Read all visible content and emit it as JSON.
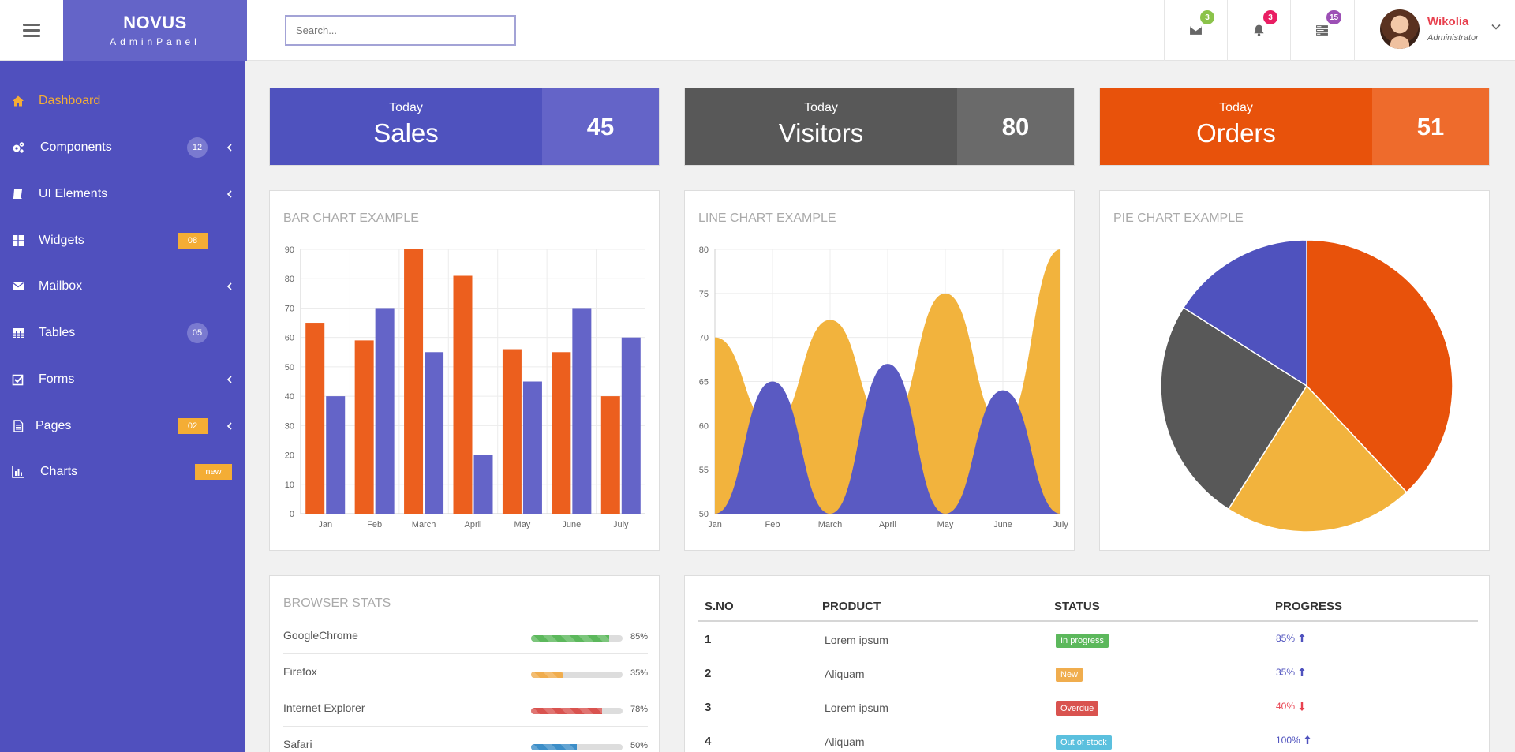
{
  "brand": {
    "name": "NOVUS",
    "subtitle": "AdminPanel"
  },
  "search": {
    "placeholder": "Search..."
  },
  "topbar": {
    "icons": [
      {
        "name": "mail-icon",
        "badge": "3",
        "color": "#8bc34a"
      },
      {
        "name": "bell-icon",
        "badge": "3",
        "color": "#e91e63"
      },
      {
        "name": "tasks-icon",
        "badge": "15",
        "color": "#9c4fb5"
      }
    ],
    "user": {
      "name": "Wikolia",
      "role": "Administrator"
    }
  },
  "sidebar": {
    "items": [
      {
        "label": "Dashboard",
        "icon": "home-icon",
        "active": true
      },
      {
        "label": "Components",
        "icon": "cogs-icon",
        "count": "12",
        "arrow": true
      },
      {
        "label": "UI Elements",
        "icon": "book-icon",
        "arrow": true
      },
      {
        "label": "Widgets",
        "icon": "th-large-icon",
        "tag": "08"
      },
      {
        "label": "Mailbox",
        "icon": "envelope-icon",
        "arrow": true
      },
      {
        "label": "Tables",
        "icon": "table-icon",
        "count": "05"
      },
      {
        "label": "Forms",
        "icon": "check-square-icon",
        "arrow": true
      },
      {
        "label": "Pages",
        "icon": "file-icon",
        "tag": "02",
        "arrow": true
      },
      {
        "label": "Charts",
        "icon": "bar-chart-icon",
        "tag": "new"
      }
    ]
  },
  "stats": [
    {
      "label": "Today",
      "title": "Sales",
      "value": "45",
      "color_left": "#4f52be",
      "color_right": "#6464c8"
    },
    {
      "label": "Today",
      "title": "Visitors",
      "value": "80",
      "color_left": "#585858",
      "color_right": "#6a6a6a"
    },
    {
      "label": "Today",
      "title": "Orders",
      "value": "51",
      "color_left": "#e8520b",
      "color_right": "#ee6b2c"
    }
  ],
  "panels": {
    "bar_title": "Bar Chart Example",
    "line_title": "Line Chart Example",
    "pie_title": "Pie Chart Example",
    "browser_title": "Browser Stats"
  },
  "chart_data": [
    {
      "type": "bar",
      "title": "BAR CHART EXAMPLE",
      "categories": [
        "Jan",
        "Feb",
        "March",
        "April",
        "May",
        "June",
        "July"
      ],
      "series": [
        {
          "values": [
            65,
            59,
            90,
            81,
            56,
            55,
            40
          ],
          "color": "#ec5f1e"
        },
        {
          "values": [
            40,
            70,
            55,
            20,
            45,
            70,
            60
          ],
          "color": "#6464c8"
        }
      ],
      "ylim": [
        0,
        90
      ],
      "yticks": [
        0,
        10,
        20,
        30,
        40,
        50,
        60,
        70,
        80,
        90
      ],
      "grid": true
    },
    {
      "type": "area",
      "title": "LINE CHART EXAMPLE",
      "categories": [
        "Jan",
        "Feb",
        "March",
        "April",
        "May",
        "June",
        "July"
      ],
      "series": [
        {
          "values": [
            70,
            60,
            72,
            60,
            75,
            60,
            80
          ],
          "color": "#f2b33d"
        },
        {
          "values": [
            50,
            65,
            50,
            67,
            50,
            64,
            50
          ],
          "color": "#5a5ac2"
        }
      ],
      "ylim": [
        50,
        80
      ],
      "yticks": [
        50,
        55,
        60,
        65,
        70,
        75,
        80
      ],
      "grid": true
    },
    {
      "type": "pie",
      "title": "PIE CHART EXAMPLE",
      "slices": [
        {
          "value": 38,
          "color": "#e8520b"
        },
        {
          "value": 21,
          "color": "#f2b33d"
        },
        {
          "value": 25,
          "color": "#585858"
        },
        {
          "value": 16,
          "color": "#4f52be"
        }
      ]
    }
  ],
  "browsers": [
    {
      "name": "GoogleChrome",
      "percent": 85,
      "label": "85%",
      "color": "#5cb85c"
    },
    {
      "name": "Firefox",
      "percent": 35,
      "label": "35%",
      "color": "#f0ad4e"
    },
    {
      "name": "Internet Explorer",
      "percent": 78,
      "label": "78%",
      "color": "#d9534f"
    },
    {
      "name": "Safari",
      "percent": 50,
      "label": "50%",
      "color": "#3c8ec8"
    }
  ],
  "table": {
    "headers": [
      "S.NO",
      "PRODUCT",
      "STATUS",
      "PROGRESS"
    ],
    "rows": [
      {
        "sno": "1",
        "product": "Lorem ipsum",
        "status": "In progress",
        "status_color": "#5cb85c",
        "progress": "85%",
        "trend": "up",
        "progress_color": "#4f52be"
      },
      {
        "sno": "2",
        "product": "Aliquam",
        "status": "New",
        "status_color": "#f0ad4e",
        "progress": "35%",
        "trend": "up",
        "progress_color": "#4f52be"
      },
      {
        "sno": "3",
        "product": "Lorem ipsum",
        "status": "Overdue",
        "status_color": "#d9534f",
        "progress": "40%",
        "trend": "down",
        "progress_color": "#e8414f"
      },
      {
        "sno": "4",
        "product": "Aliquam",
        "status": "Out of stock",
        "status_color": "#5bc0de",
        "progress": "100%",
        "trend": "up",
        "progress_color": "#4f52be"
      }
    ]
  }
}
